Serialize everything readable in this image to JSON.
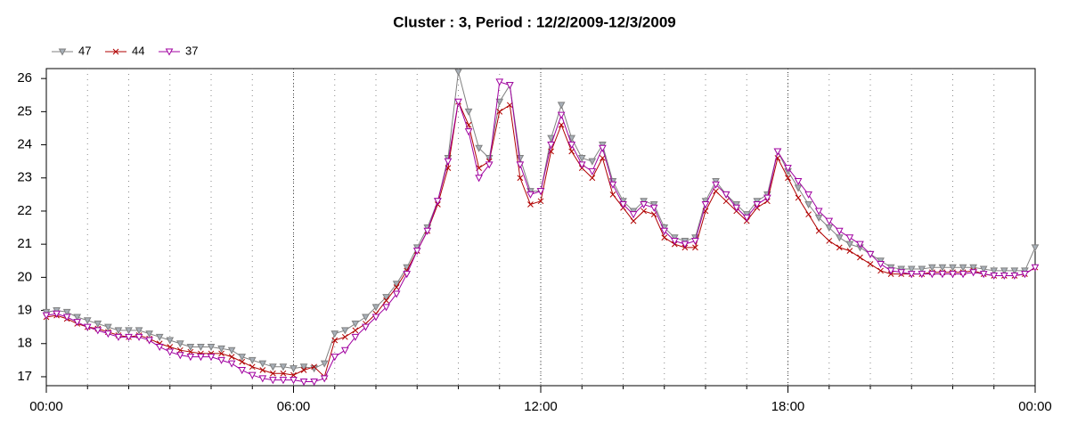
{
  "chart_data": {
    "type": "line",
    "title": "Cluster : 3, Period : 12/2/2009-12/3/2009",
    "x": [
      "00:00",
      "00:15",
      "00:30",
      "00:45",
      "01:00",
      "01:15",
      "01:30",
      "01:45",
      "02:00",
      "02:15",
      "02:30",
      "02:45",
      "03:00",
      "03:15",
      "03:30",
      "03:45",
      "04:00",
      "04:15",
      "04:30",
      "04:45",
      "05:00",
      "05:15",
      "05:30",
      "05:45",
      "06:00",
      "06:15",
      "06:30",
      "06:45",
      "07:00",
      "07:15",
      "07:30",
      "07:45",
      "08:00",
      "08:15",
      "08:30",
      "08:45",
      "09:00",
      "09:15",
      "09:30",
      "09:45",
      "10:00",
      "10:15",
      "10:30",
      "10:45",
      "11:00",
      "11:15",
      "11:30",
      "11:45",
      "12:00",
      "12:15",
      "12:30",
      "12:45",
      "13:00",
      "13:15",
      "13:30",
      "13:45",
      "14:00",
      "14:15",
      "14:30",
      "14:45",
      "15:00",
      "15:15",
      "15:30",
      "15:45",
      "16:00",
      "16:15",
      "16:30",
      "16:45",
      "17:00",
      "17:15",
      "17:30",
      "17:45",
      "18:00",
      "18:15",
      "18:30",
      "18:45",
      "19:00",
      "19:15",
      "19:30",
      "19:45",
      "20:00",
      "20:15",
      "20:30",
      "20:45",
      "21:00",
      "21:15",
      "21:30",
      "21:45",
      "22:00",
      "22:15",
      "22:30",
      "22:45",
      "23:00",
      "23:15",
      "23:30",
      "23:45",
      "24:00"
    ],
    "series": [
      {
        "name": "47",
        "color": "#808080",
        "marker": "triangle-down",
        "marker_fill": "#a8b0b8",
        "values": [
          18.95,
          19.0,
          18.95,
          18.8,
          18.7,
          18.6,
          18.5,
          18.4,
          18.4,
          18.4,
          18.3,
          18.2,
          18.1,
          18.0,
          17.9,
          17.9,
          17.9,
          17.85,
          17.8,
          17.6,
          17.5,
          17.4,
          17.3,
          17.3,
          17.25,
          17.3,
          17.25,
          17.4,
          18.3,
          18.4,
          18.6,
          18.8,
          19.1,
          19.4,
          19.8,
          20.3,
          20.9,
          21.5,
          22.3,
          23.6,
          26.2,
          25.0,
          23.9,
          23.6,
          25.3,
          25.8,
          23.6,
          22.6,
          22.6,
          24.2,
          25.2,
          24.2,
          23.6,
          23.5,
          24.0,
          22.9,
          22.3,
          22.0,
          22.3,
          22.2,
          21.5,
          21.2,
          21.1,
          21.2,
          22.3,
          22.9,
          22.5,
          22.2,
          21.9,
          22.3,
          22.5,
          23.8,
          23.2,
          22.7,
          22.2,
          21.8,
          21.5,
          21.2,
          21.0,
          20.9,
          20.7,
          20.5,
          20.3,
          20.25,
          20.25,
          20.25,
          20.3,
          20.3,
          20.3,
          20.3,
          20.3,
          20.25,
          20.2,
          20.2,
          20.2,
          20.2,
          20.9
        ]
      },
      {
        "name": "44",
        "color": "#b00000",
        "marker": "cross",
        "marker_fill": "none",
        "values": [
          18.8,
          18.85,
          18.75,
          18.6,
          18.5,
          18.45,
          18.35,
          18.25,
          18.2,
          18.25,
          18.15,
          18.0,
          17.9,
          17.8,
          17.75,
          17.7,
          17.7,
          17.7,
          17.6,
          17.45,
          17.3,
          17.2,
          17.1,
          17.1,
          17.05,
          17.2,
          17.3,
          17.0,
          18.1,
          18.2,
          18.4,
          18.6,
          18.9,
          19.3,
          19.7,
          20.2,
          20.8,
          21.4,
          22.2,
          23.3,
          25.3,
          24.6,
          23.3,
          23.5,
          25.0,
          25.2,
          23.0,
          22.2,
          22.3,
          23.8,
          24.6,
          23.8,
          23.3,
          23.0,
          23.6,
          22.5,
          22.1,
          21.7,
          22.0,
          21.9,
          21.2,
          21.0,
          20.9,
          20.9,
          22.0,
          22.6,
          22.3,
          22.0,
          21.7,
          22.1,
          22.3,
          23.6,
          23.0,
          22.4,
          21.9,
          21.4,
          21.1,
          20.9,
          20.8,
          20.6,
          20.4,
          20.2,
          20.1,
          20.1,
          20.1,
          20.1,
          20.15,
          20.15,
          20.15,
          20.15,
          20.2,
          20.1,
          20.05,
          20.05,
          20.05,
          20.1,
          20.3
        ]
      },
      {
        "name": "37",
        "color": "#a000a0",
        "marker": "triangle-down",
        "marker_fill": "#ffffff",
        "values": [
          18.85,
          18.9,
          18.8,
          18.65,
          18.5,
          18.4,
          18.3,
          18.2,
          18.2,
          18.2,
          18.1,
          17.9,
          17.75,
          17.65,
          17.6,
          17.6,
          17.6,
          17.5,
          17.4,
          17.2,
          17.05,
          16.95,
          16.9,
          16.9,
          16.9,
          16.85,
          16.85,
          16.95,
          17.6,
          17.8,
          18.2,
          18.5,
          18.8,
          19.1,
          19.5,
          20.1,
          20.8,
          21.4,
          22.3,
          23.5,
          25.3,
          24.4,
          23.0,
          23.4,
          25.9,
          25.8,
          23.4,
          22.5,
          22.6,
          24.0,
          24.9,
          24.0,
          23.4,
          23.2,
          23.9,
          22.8,
          22.2,
          21.9,
          22.2,
          22.1,
          21.4,
          21.1,
          21.0,
          21.1,
          22.2,
          22.8,
          22.5,
          22.1,
          21.8,
          22.2,
          22.4,
          23.8,
          23.3,
          22.9,
          22.5,
          22.0,
          21.7,
          21.4,
          21.2,
          21.0,
          20.7,
          20.4,
          20.2,
          20.15,
          20.1,
          20.1,
          20.1,
          20.1,
          20.1,
          20.1,
          20.15,
          20.1,
          20.05,
          20.05,
          20.05,
          20.1,
          20.3
        ]
      }
    ],
    "xlim": [
      "00:00",
      "24:00"
    ],
    "xticks": [
      "00:00",
      "06:00",
      "12:00",
      "18:00",
      {
        "value": "24:00",
        "label": "00:00"
      }
    ],
    "ylim": [
      16.73,
      26.3
    ],
    "yticks": [
      17,
      18,
      19,
      20,
      21,
      22,
      23,
      24,
      25,
      26
    ],
    "grid": true,
    "legend": "top-left"
  }
}
